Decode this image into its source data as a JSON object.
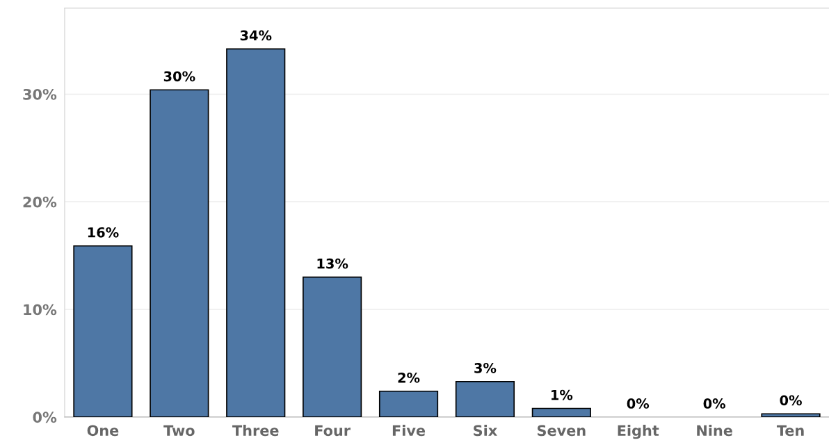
{
  "chart_data": {
    "type": "bar",
    "categories": [
      "One",
      "Two",
      "Three",
      "Four",
      "Five",
      "Six",
      "Seven",
      "Eight",
      "Nine",
      "Ten"
    ],
    "values": [
      15.9,
      30.4,
      34.2,
      13.0,
      2.4,
      3.3,
      0.8,
      0,
      0,
      0.3
    ],
    "value_labels": [
      "16%",
      "30%",
      "34%",
      "13%",
      "2%",
      "3%",
      "1%",
      "0%",
      "0%",
      "0%"
    ],
    "color": "#4e77a5",
    "ylim": [
      0,
      38
    ],
    "yticks": [
      {
        "value": 0,
        "label": "0%"
      },
      {
        "value": 10,
        "label": "10%"
      },
      {
        "value": 20,
        "label": "20%"
      },
      {
        "value": 30,
        "label": "30%"
      }
    ],
    "grid": "y"
  }
}
